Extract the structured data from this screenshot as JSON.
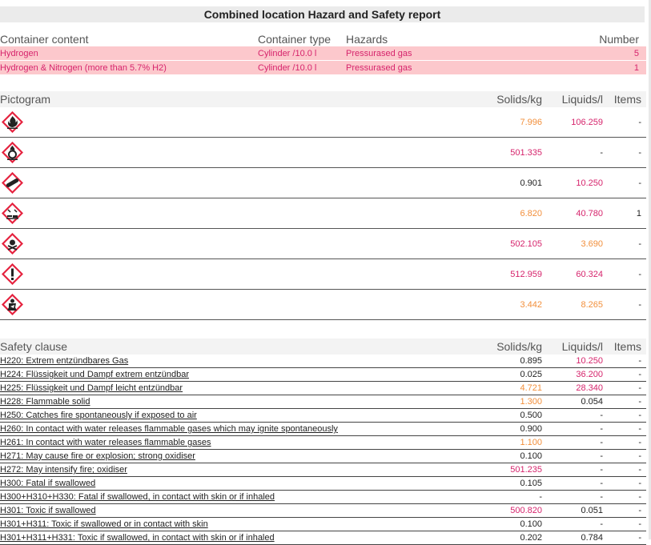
{
  "title": "Combined location Hazard and Safety report",
  "containers": {
    "headers": [
      "Container content",
      "Container type",
      "Hazards",
      "Number"
    ],
    "rows": [
      {
        "content": "Hydrogen",
        "type": "Cylinder /10.0 l",
        "hazard": "Pressurased gas",
        "number": "5"
      },
      {
        "content": "Hydrogen & Nitrogen (more than 5.7% H2)",
        "type": "Cylinder /10.0 l",
        "hazard": "Pressurased gas",
        "number": "1"
      }
    ]
  },
  "pictograms": {
    "headers": [
      "Pictogram",
      "Solids/kg",
      "Liquids/l",
      "Items"
    ],
    "rows": [
      {
        "icon": "flame-icon",
        "solids": "7.996",
        "s_color": "orange",
        "liquids": "106.259",
        "l_color": "magenta",
        "items": "-"
      },
      {
        "icon": "flame-over-circle-icon",
        "solids": "501.335",
        "s_color": "magenta",
        "liquids": "-",
        "l_color": "dark",
        "items": "-"
      },
      {
        "icon": "gas-cylinder-icon",
        "solids": "0.901",
        "s_color": "dark",
        "liquids": "10.250",
        "l_color": "magenta",
        "items": "-"
      },
      {
        "icon": "corrosion-icon",
        "solids": "6.820",
        "s_color": "orange",
        "liquids": "40.780",
        "l_color": "magenta",
        "items": "1"
      },
      {
        "icon": "skull-crossbones-icon",
        "solids": "502.105",
        "s_color": "magenta",
        "liquids": "3.690",
        "l_color": "orange",
        "items": "-"
      },
      {
        "icon": "exclamation-mark-icon",
        "solids": "512.959",
        "s_color": "magenta",
        "liquids": "60.324",
        "l_color": "magenta",
        "items": "-"
      },
      {
        "icon": "health-hazard-icon",
        "solids": "3.442",
        "s_color": "orange",
        "liquids": "8.265",
        "l_color": "orange",
        "items": "-"
      }
    ]
  },
  "safety": {
    "headers": [
      "Safety clause",
      "Solids/kg",
      "Liquids/l",
      "Items"
    ],
    "rows": [
      {
        "clause": "H220: Extrem entzündbares Gas",
        "solids": "0.895",
        "s_color": "dark",
        "liquids": "10.250",
        "l_color": "magenta",
        "items": "-"
      },
      {
        "clause": "H224: Flüssigkeit und Dampf extrem entzündbar",
        "solids": "0.025",
        "s_color": "dark",
        "liquids": "36.200",
        "l_color": "magenta",
        "items": "-"
      },
      {
        "clause": "H225: Flüssigkeit und Dampf leicht entzündbar",
        "solids": "4.721",
        "s_color": "orange",
        "liquids": "28.340",
        "l_color": "magenta",
        "items": "-"
      },
      {
        "clause": "H228: Flammable solid",
        "solids": "1.300",
        "s_color": "orange",
        "liquids": "0.054",
        "l_color": "dark",
        "items": "-"
      },
      {
        "clause": "H250: Catches fire spontaneously if exposed to air",
        "solids": "0.500",
        "s_color": "dark",
        "liquids": "-",
        "l_color": "dark",
        "items": "-"
      },
      {
        "clause": "H260: In contact with water releases flammable gases which may ignite spontaneously",
        "solids": "0.900",
        "s_color": "dark",
        "liquids": "-",
        "l_color": "dark",
        "items": "-"
      },
      {
        "clause": "H261: In contact with water releases flammable gases",
        "solids": "1.100",
        "s_color": "orange",
        "liquids": "-",
        "l_color": "dark",
        "items": "-"
      },
      {
        "clause": "H271: May cause fire or explosion; strong oxidiser",
        "solids": "0.100",
        "s_color": "dark",
        "liquids": "-",
        "l_color": "dark",
        "items": "-"
      },
      {
        "clause": "H272: May intensify fire; oxidiser",
        "solids": "501.235",
        "s_color": "magenta",
        "liquids": "-",
        "l_color": "dark",
        "items": "-"
      },
      {
        "clause": "H300: Fatal if swallowed",
        "solids": "0.105",
        "s_color": "dark",
        "liquids": "-",
        "l_color": "dark",
        "items": "-"
      },
      {
        "clause": "H300+H310+H330: Fatal if swallowed, in contact with skin or if inhaled",
        "solids": "-",
        "s_color": "dark",
        "liquids": "-",
        "l_color": "dark",
        "items": "-"
      },
      {
        "clause": "H301: Toxic if swallowed",
        "solids": "500.820",
        "s_color": "magenta",
        "liquids": "0.051",
        "l_color": "dark",
        "items": "-"
      },
      {
        "clause": "H301+H311: Toxic if swallowed or in contact with skin",
        "solids": "0.100",
        "s_color": "dark",
        "liquids": "-",
        "l_color": "dark",
        "items": "-"
      },
      {
        "clause": "H301+H311+H331: Toxic if swallowed, in contact with skin or if inhaled",
        "solids": "0.202",
        "s_color": "dark",
        "liquids": "0.784",
        "l_color": "dark",
        "items": "-"
      }
    ]
  }
}
